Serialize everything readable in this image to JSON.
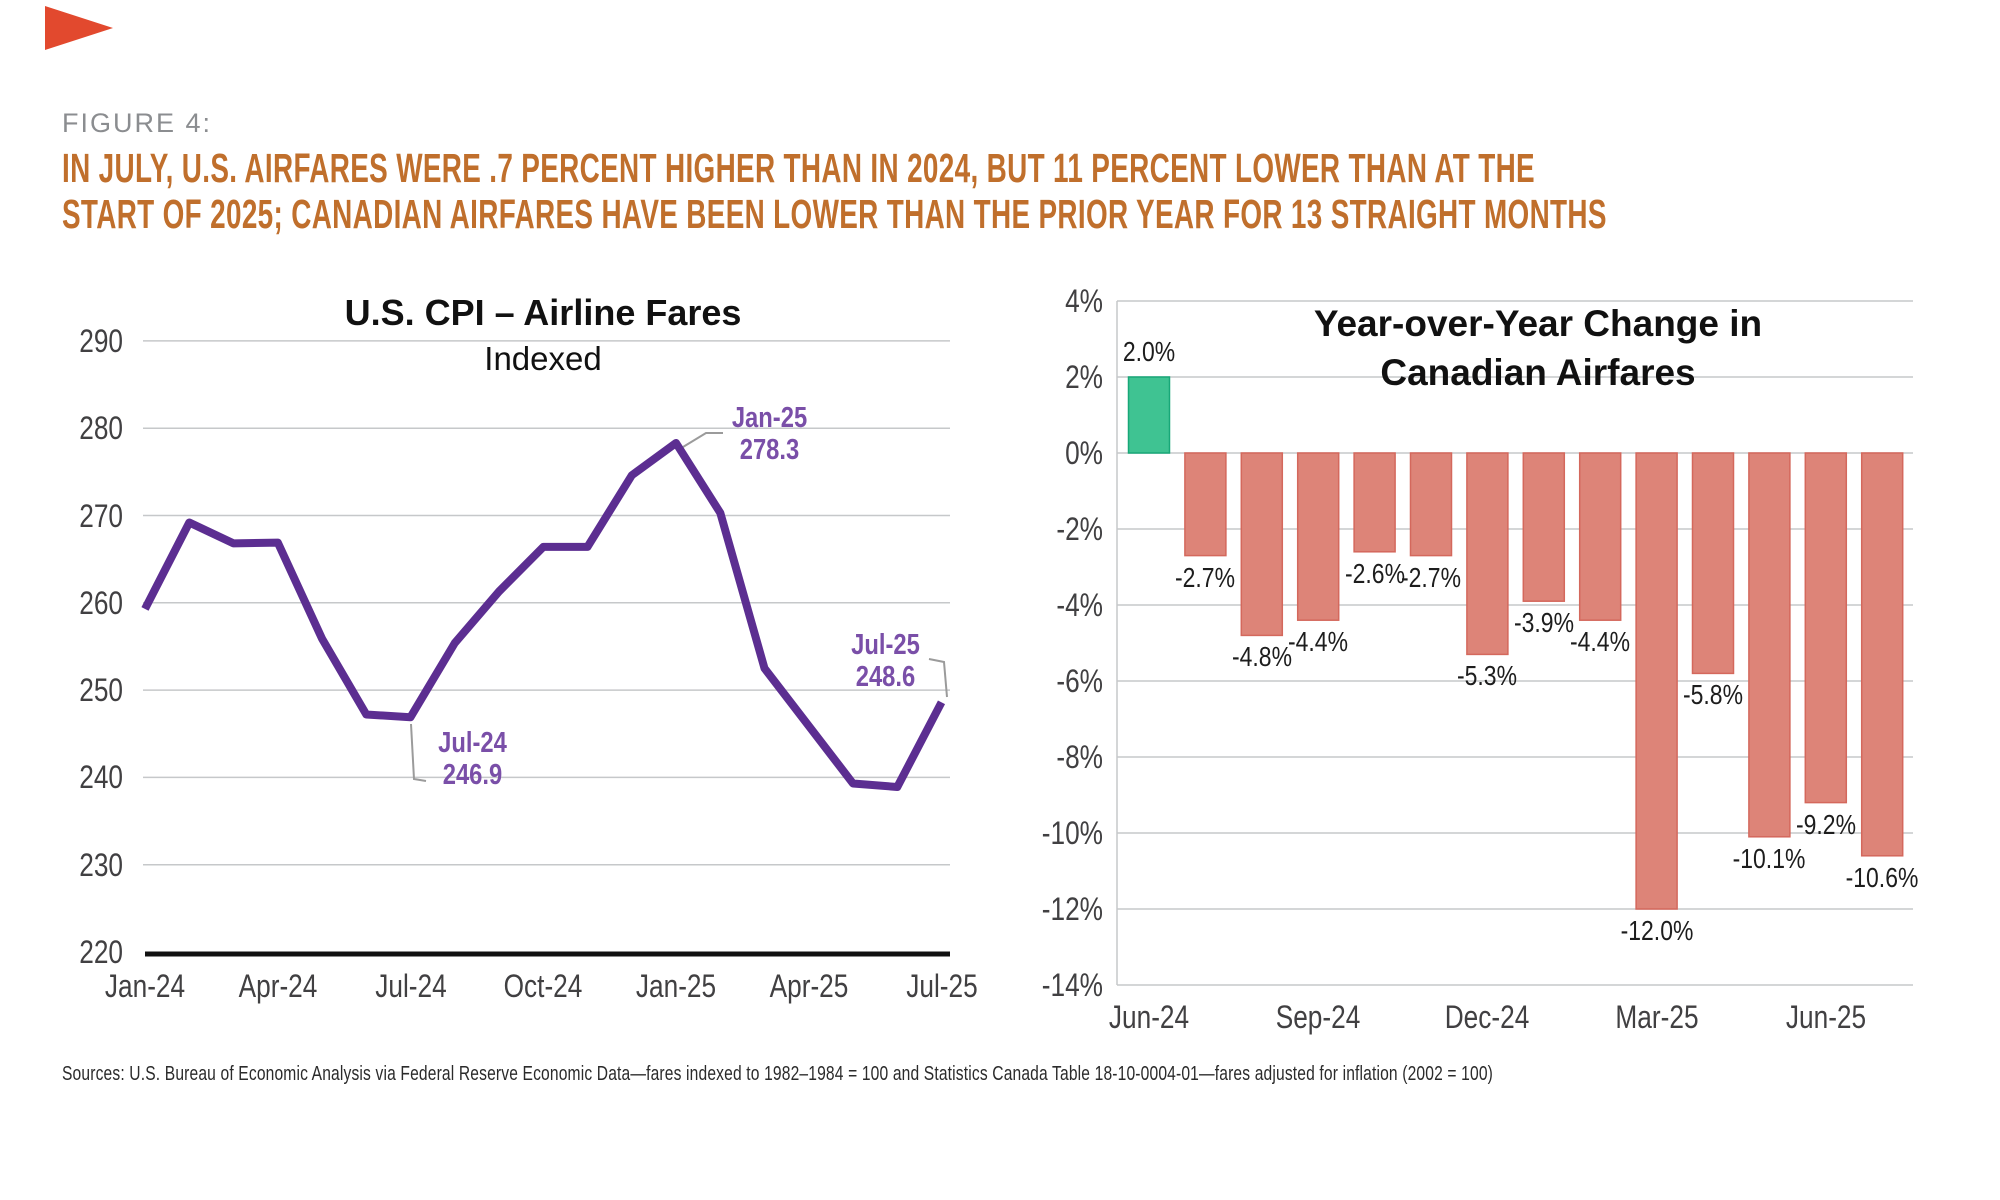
{
  "figure_label": "FIGURE 4:",
  "headline": {
    "line1": "IN JULY, U.S. AIRFARES WERE .7 PERCENT HIGHER THAN IN 2024, BUT 11 PERCENT LOWER THAN AT THE",
    "line2": "START OF 2025; CANADIAN AIRFARES HAVE BEEN LOWER THAN THE PRIOR YEAR FOR 13 STRAIGHT MONTHS"
  },
  "source_line": "Sources: U.S. Bureau of Economic Analysis via Federal Reserve Economic Data—fares indexed to 1982–1984 = 100 and Statistics Canada Table 18-10-0004-01—fares adjusted for inflation (2002 = 100)",
  "colors": {
    "headline_orange": "#c06f2c",
    "figure_label_gray": "#8b8d90",
    "line_purple": "#5c2e91",
    "annotation_purple": "#7a4fa8",
    "bar_negative_fill": "#dd8478",
    "bar_negative_border": "#d4685c",
    "bar_positive_fill": "#3fc392",
    "bar_positive_border": "#18a878",
    "gridline_gray": "#c6c8ca",
    "axis_text_gray": "#414042",
    "title_black": "#111111",
    "leader_gray": "#9b9b9b",
    "corner_triangle_red": "#e2492e"
  },
  "chart_data": [
    {
      "type": "line",
      "title": "U.S. CPI – Airline Fares",
      "subtitle": "Indexed",
      "x": [
        "Jan-24",
        "Feb-24",
        "Mar-24",
        "Apr-24",
        "May-24",
        "Jun-24",
        "Jul-24",
        "Aug-24",
        "Sep-24",
        "Oct-24",
        "Nov-24",
        "Dec-24",
        "Jan-25",
        "Feb-25",
        "Mar-25",
        "Apr-25",
        "May-25",
        "Jun-25",
        "Jul-25"
      ],
      "values": [
        259.3,
        269.2,
        266.8,
        266.9,
        255.9,
        247.2,
        246.9,
        255.4,
        261.3,
        266.4,
        266.4,
        274.6,
        278.3,
        270.3,
        252.5,
        245.9,
        239.3,
        238.9,
        248.6
      ],
      "x_tick_labels": [
        "Jan-24",
        "Apr-24",
        "Jul-24",
        "Oct-24",
        "Jan-25",
        "Apr-25",
        "Jul-25"
      ],
      "y_tick_values": [
        220,
        230,
        240,
        250,
        260,
        270,
        280,
        290
      ],
      "ylim": [
        220,
        290
      ],
      "grid": "horizontal",
      "annotations": [
        {
          "label": "Jul-24",
          "value": "246.9"
        },
        {
          "label": "Jan-25",
          "value": "278.3"
        },
        {
          "label": "Jul-25",
          "value": "248.6"
        }
      ]
    },
    {
      "type": "bar",
      "title": "Year-over-Year Change in Canadian Airfares",
      "title_lines": [
        "Year-over-Year Change in",
        "Canadian Airfares"
      ],
      "categories": [
        "Jun-24",
        "Jul-24",
        "Aug-24",
        "Sep-24",
        "Oct-24",
        "Nov-24",
        "Dec-24",
        "Jan-25",
        "Feb-25",
        "Mar-25",
        "Apr-25",
        "May-25",
        "Jun-25",
        "Jul-25"
      ],
      "values": [
        2.0,
        -2.7,
        -4.8,
        -4.4,
        -2.6,
        -2.7,
        -5.3,
        -3.9,
        -4.4,
        -12.0,
        -5.8,
        -10.1,
        -9.2,
        -10.6
      ],
      "bar_labels": [
        "2.0%",
        "-2.7%",
        "-4.8%",
        "-4.4%",
        "-2.6%",
        "-2.7%",
        "-5.3%",
        "-3.9%",
        "-4.4%",
        "-12.0%",
        "-5.8%",
        "-10.1%",
        "-9.2%",
        "-10.6%"
      ],
      "x_tick_labels": [
        "Jun-24",
        "Sep-24",
        "Dec-24",
        "Mar-25",
        "Jun-25"
      ],
      "y_tick_labels": [
        "4%",
        "2%",
        "0%",
        "-2%",
        "-4%",
        "-6%",
        "-8%",
        "-10%",
        "-12%",
        "-14%"
      ],
      "y_tick_values": [
        4,
        2,
        0,
        -2,
        -4,
        -6,
        -8,
        -10,
        -12,
        -14
      ],
      "ylim": [
        -14,
        4
      ],
      "grid": "horizontal"
    }
  ]
}
